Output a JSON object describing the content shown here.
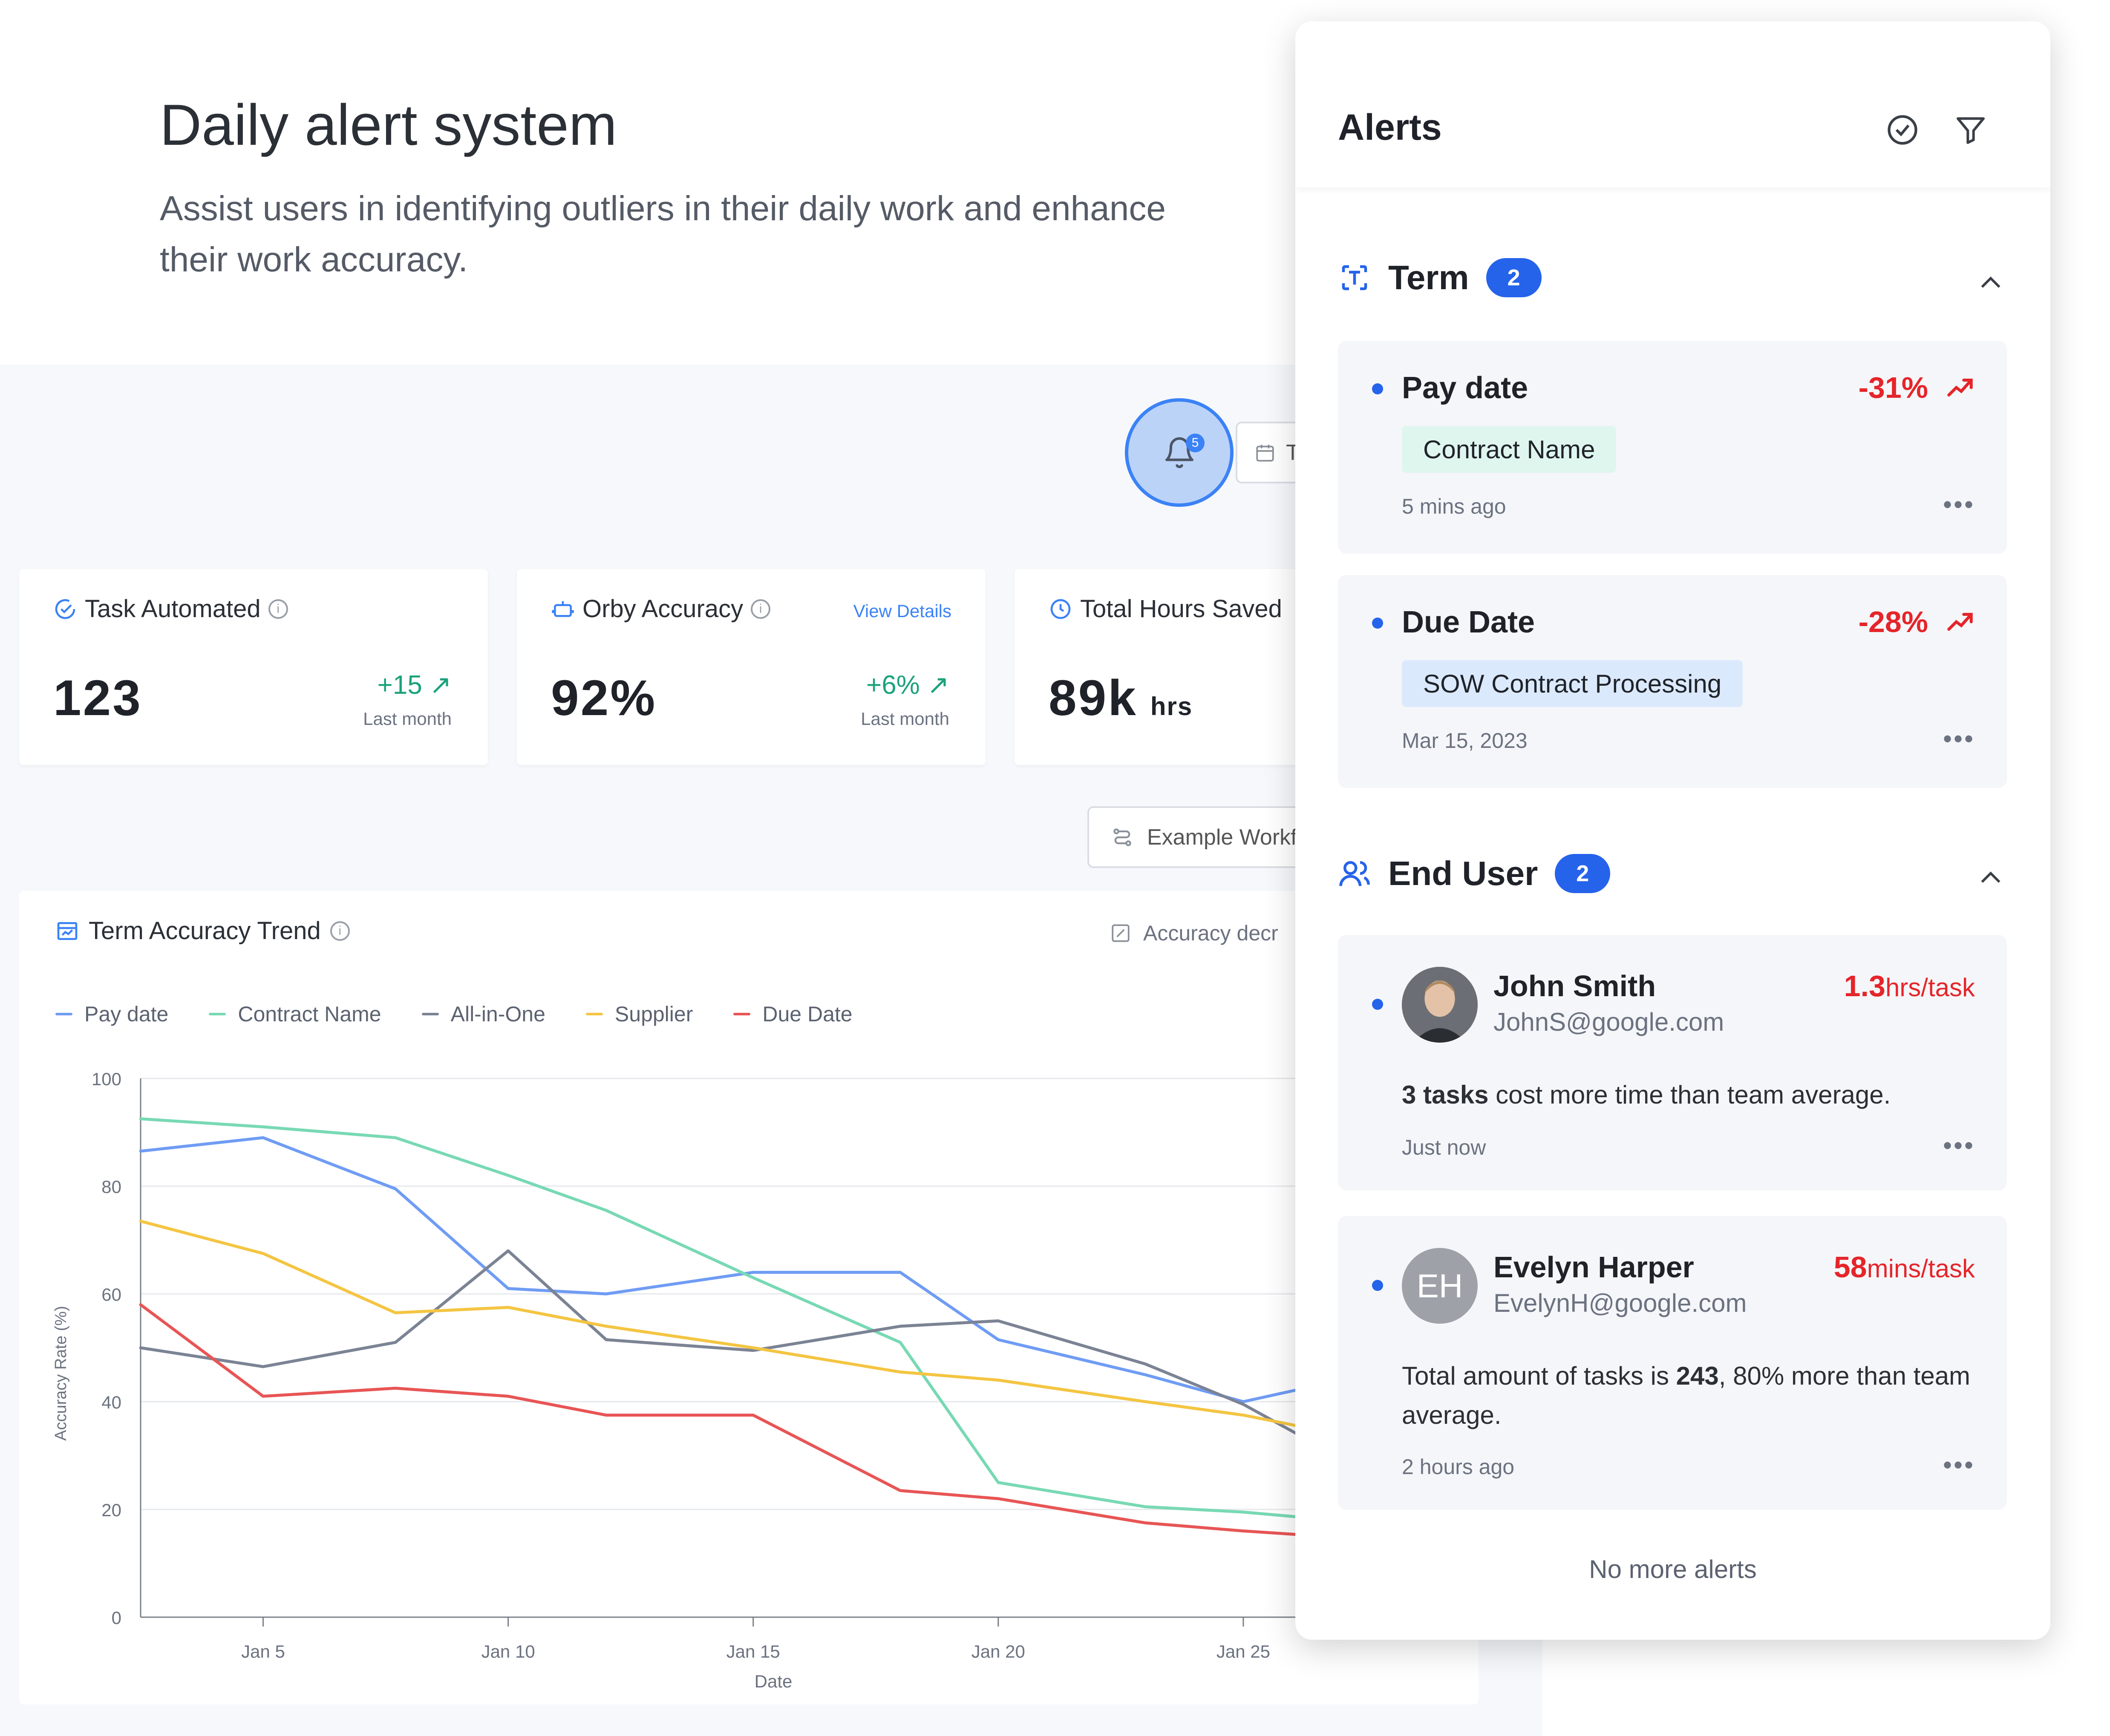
{
  "hero": {
    "title": "Daily alert system",
    "subtitle": "Assist users in identifying outliers in their daily work and enhance their work accuracy."
  },
  "toolbar": {
    "notification_count": "5",
    "date_button_label": "T",
    "workflow_button_label": "Example Workf"
  },
  "kpis": [
    {
      "title": "Task Automated",
      "value": "123",
      "unit": "",
      "delta": "+15",
      "delta_label": "Last month",
      "link": "",
      "icon": "check-circle-icon"
    },
    {
      "title": "Orby Accuracy",
      "value": "92%",
      "unit": "",
      "delta": "+6%",
      "delta_label": "Last month",
      "link": "View Details",
      "icon": "robot-icon"
    },
    {
      "title": "Total Hours Saved",
      "value": "89k",
      "unit": "hrs",
      "delta": "",
      "delta_label": "",
      "link": "",
      "icon": "clock-icon"
    }
  ],
  "chart_card": {
    "title": "Term Accuracy Trend",
    "tag": "Accuracy decr"
  },
  "chart_data": {
    "type": "line",
    "title": "Term Accuracy Trend",
    "xlabel": "Date",
    "ylabel": "Accuracy Rate (%)",
    "ylim": [
      0,
      100
    ],
    "yticks": [
      0,
      20,
      40,
      60,
      80,
      100
    ],
    "xticks": [
      "Jan 5",
      "Jan 10",
      "Jan 15",
      "Jan 20",
      "Jan 25"
    ],
    "x": [
      "Jan 3",
      "Jan 5",
      "Jan 8",
      "Jan 10",
      "Jan 12",
      "Jan 15",
      "Jan 18",
      "Jan 20",
      "Jan 23",
      "Jan 25",
      "Jan 27.5"
    ],
    "x_numeric": [
      2.5,
      5,
      7.7,
      10,
      12,
      15,
      18,
      20,
      23,
      25,
      27.5
    ],
    "grid": true,
    "legend_position": "top-left",
    "series": [
      {
        "name": "Pay date",
        "color": "#6f9cf4",
        "points": [
          [
            2.5,
            86.5
          ],
          [
            5,
            89
          ],
          [
            7.7,
            79.5
          ],
          [
            10,
            61
          ],
          [
            12,
            60
          ],
          [
            15,
            64
          ],
          [
            18,
            64
          ],
          [
            20,
            51.5
          ],
          [
            23,
            45
          ],
          [
            25,
            40
          ],
          [
            27.5,
            45
          ]
        ]
      },
      {
        "name": "Contract Name",
        "color": "#78d9b4",
        "points": [
          [
            2.5,
            92.5
          ],
          [
            5,
            91
          ],
          [
            7.7,
            89
          ],
          [
            10,
            82
          ],
          [
            12,
            75.5
          ],
          [
            15,
            63
          ],
          [
            18,
            51
          ],
          [
            20,
            25
          ],
          [
            23,
            20.5
          ],
          [
            25,
            19.5
          ],
          [
            27.5,
            17.5
          ]
        ]
      },
      {
        "name": "All-in-One",
        "color": "#7b8394",
        "points": [
          [
            2.5,
            50
          ],
          [
            5,
            46.5
          ],
          [
            7.7,
            51
          ],
          [
            10,
            68
          ],
          [
            12,
            51.5
          ],
          [
            15,
            49.5
          ],
          [
            18,
            54
          ],
          [
            20,
            55
          ],
          [
            23,
            47
          ],
          [
            25,
            39.5
          ],
          [
            27.5,
            27
          ]
        ]
      },
      {
        "name": "Supplier",
        "color": "#f4c542",
        "points": [
          [
            2.5,
            73.5
          ],
          [
            5,
            67.5
          ],
          [
            7.7,
            56.5
          ],
          [
            10,
            57.5
          ],
          [
            12,
            54
          ],
          [
            15,
            50
          ],
          [
            18,
            45.5
          ],
          [
            20,
            44
          ],
          [
            23,
            40
          ],
          [
            25,
            37.5
          ],
          [
            27.5,
            33
          ]
        ]
      },
      {
        "name": "Due Date",
        "color": "#e85555",
        "points": [
          [
            2.5,
            58
          ],
          [
            5,
            41
          ],
          [
            7.7,
            42.5
          ],
          [
            10,
            41
          ],
          [
            12,
            37.5
          ],
          [
            15,
            37.5
          ],
          [
            18,
            23.5
          ],
          [
            20,
            22
          ],
          [
            23,
            17.5
          ],
          [
            25,
            16
          ],
          [
            27.5,
            14.5
          ]
        ]
      }
    ]
  },
  "alerts": {
    "title": "Alerts",
    "term_section": {
      "label": "Term",
      "count": "2",
      "items": [
        {
          "title": "Pay date",
          "pct": "-31%",
          "chip": "Contract Name",
          "time": "5 mins ago"
        },
        {
          "title": "Due Date",
          "pct": "-28%",
          "chip": "SOW Contract Processing",
          "time": "Mar 15, 2023"
        }
      ]
    },
    "user_section": {
      "label": "End User",
      "count": "2",
      "items": [
        {
          "name": "John Smith",
          "email": "JohnS@google.com",
          "rate_value": "1.3",
          "rate_unit": "hrs/task",
          "desc_bold": "3 tasks",
          "desc_rest": " cost more time than team average.",
          "time": "Just now"
        },
        {
          "name": "Evelyn Harper",
          "initials": "EH",
          "email": "EvelynH@google.com",
          "rate_value": "58",
          "rate_unit": "mins/task",
          "desc_pre": "Total amount of tasks is ",
          "desc_bold": "243",
          "desc_rest": ", 80% more than team average.",
          "time": "2 hours ago"
        }
      ]
    },
    "footer": "No more alerts",
    "more_label": "•••"
  }
}
